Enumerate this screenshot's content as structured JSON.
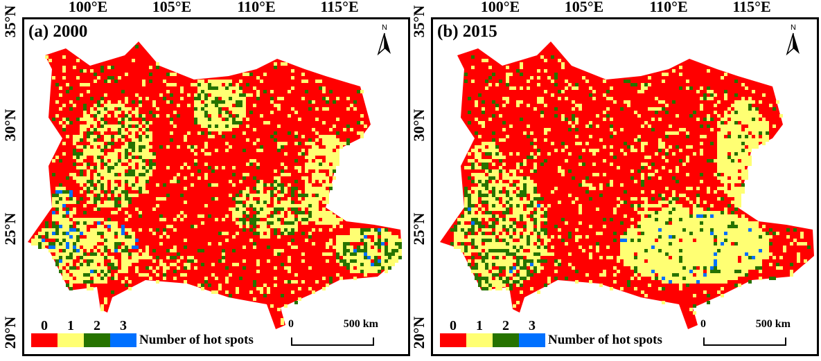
{
  "axes": {
    "lon_labels": [
      "100°E",
      "105°E",
      "110°E",
      "115°E"
    ],
    "lat_labels": [
      "35°N",
      "30°N",
      "25°N",
      "20°N"
    ]
  },
  "panels": [
    {
      "title": "(a) 2000",
      "north": "N"
    },
    {
      "title": "(b) 2015",
      "north": "N"
    }
  ],
  "legend": {
    "title": "Number of hot spots",
    "classes": [
      {
        "label": "0",
        "color": "#ff0000"
      },
      {
        "label": "1",
        "color": "#ffff73"
      },
      {
        "label": "2",
        "color": "#267300"
      },
      {
        "label": "3",
        "color": "#0070ff"
      }
    ]
  },
  "scale_bar": {
    "start": "0",
    "end": "500 km"
  }
}
